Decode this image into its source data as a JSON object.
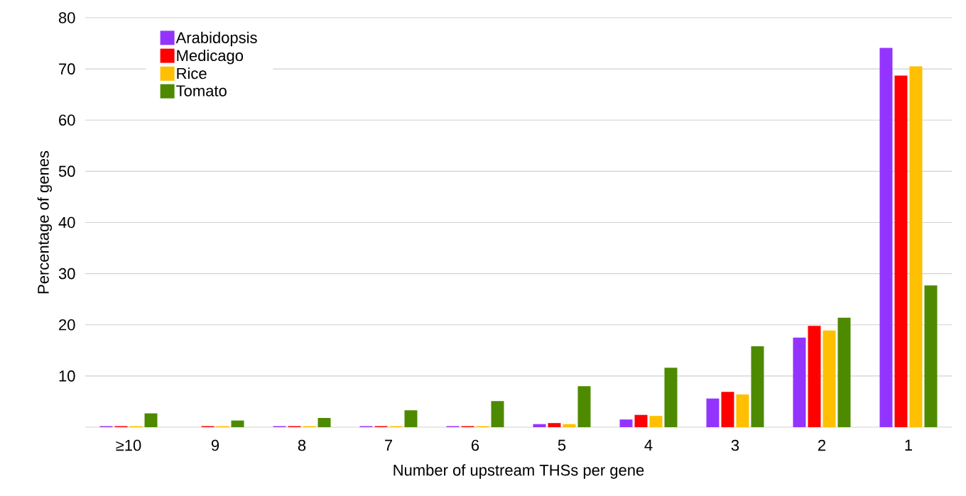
{
  "chart_data": {
    "type": "bar",
    "xlabel": "Number of upstream THSs per gene",
    "ylabel": "Percentage of genes",
    "categories": [
      "≥10",
      "9",
      "8",
      "7",
      "6",
      "5",
      "4",
      "3",
      "2",
      "1"
    ],
    "series": [
      {
        "name": "Arabidopsis",
        "color": "#9334fe",
        "values": [
          0.2,
          0,
          0.2,
          0.2,
          0.2,
          0.6,
          1.5,
          5.6,
          17.5,
          74.1
        ]
      },
      {
        "name": "Medicago",
        "color": "#fe0000",
        "values": [
          0.2,
          0.2,
          0.2,
          0.2,
          0.2,
          0.8,
          2.4,
          6.9,
          19.8,
          68.7
        ]
      },
      {
        "name": "Rice",
        "color": "#fec000",
        "values": [
          0.2,
          0.2,
          0.2,
          0.2,
          0.2,
          0.6,
          2.2,
          6.4,
          18.9,
          70.5
        ]
      },
      {
        "name": "Tomato",
        "color": "#4e8a00",
        "values": [
          2.7,
          1.3,
          1.8,
          3.3,
          5.1,
          8.0,
          11.6,
          15.8,
          21.4,
          27.7
        ]
      }
    ],
    "ylim": [
      0,
      80
    ],
    "yticks": [
      10,
      20,
      30,
      40,
      50,
      60,
      70,
      80
    ],
    "grid": "y",
    "legend": "top left"
  }
}
